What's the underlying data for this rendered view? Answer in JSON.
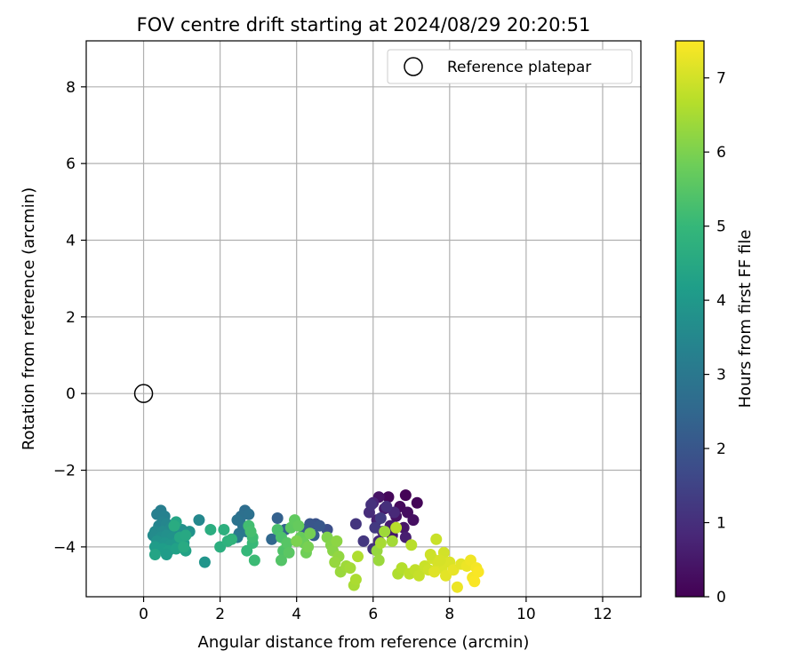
{
  "chart_data": {
    "type": "scatter",
    "title": "FOV centre drift starting at 2024/08/29 20:20:51",
    "xlabel": "Angular distance from reference (arcmin)",
    "ylabel": "Rotation from reference (arcmin)",
    "xlim": [
      -1.5,
      13.0
    ],
    "ylim": [
      -5.3,
      9.2
    ],
    "xticks": [
      0,
      2,
      4,
      6,
      8,
      10,
      12
    ],
    "yticks": [
      -4,
      -2,
      0,
      2,
      4,
      6,
      8
    ],
    "xtick_labels": [
      "0",
      "2",
      "4",
      "6",
      "8",
      "10",
      "12"
    ],
    "ytick_labels": [
      "−4",
      "−2",
      "0",
      "2",
      "4",
      "6",
      "8"
    ],
    "grid": true,
    "legend": {
      "placement": "top-right",
      "entries": [
        "Reference platepar"
      ]
    },
    "reference_point": {
      "name": "Reference platepar",
      "x": 0,
      "y": 0,
      "marker": "open-circle",
      "color": "#000000"
    },
    "colorbar": {
      "label": "Hours from first FF file",
      "min": 0,
      "max": 7.5,
      "ticks": [
        0,
        1,
        2,
        3,
        4,
        5,
        6,
        7
      ],
      "tick_labels": [
        "0",
        "1",
        "2",
        "3",
        "4",
        "5",
        "6",
        "7"
      ],
      "colormap": "viridis",
      "colormap_stops": [
        "#440154",
        "#482878",
        "#3e4a89",
        "#31688e",
        "#26828e",
        "#1f9e89",
        "#35b779",
        "#6ece58",
        "#b5de2b",
        "#fde725"
      ]
    },
    "series": [
      {
        "points": [
          {
            "x": 6.85,
            "y": -2.65,
            "t": 0.05
          },
          {
            "x": 7.15,
            "y": -2.85,
            "t": 0.1
          },
          {
            "x": 6.4,
            "y": -2.7,
            "t": 0.15
          },
          {
            "x": 6.7,
            "y": -2.95,
            "t": 0.2
          },
          {
            "x": 6.9,
            "y": -3.1,
            "t": 0.25
          },
          {
            "x": 7.05,
            "y": -3.3,
            "t": 0.3
          },
          {
            "x": 6.6,
            "y": -3.2,
            "t": 0.35
          },
          {
            "x": 6.15,
            "y": -2.7,
            "t": 0.4
          },
          {
            "x": 6.8,
            "y": -3.5,
            "t": 0.45
          },
          {
            "x": 6.5,
            "y": -3.7,
            "t": 0.5
          },
          {
            "x": 6.3,
            "y": -3.0,
            "t": 0.55
          },
          {
            "x": 6.45,
            "y": -3.45,
            "t": 0.6
          },
          {
            "x": 6.85,
            "y": -3.75,
            "t": 0.65
          },
          {
            "x": 6.1,
            "y": -3.3,
            "t": 0.7
          },
          {
            "x": 6.25,
            "y": -3.6,
            "t": 0.75
          },
          {
            "x": 6.0,
            "y": -2.85,
            "t": 0.8
          },
          {
            "x": 6.55,
            "y": -3.1,
            "t": 0.85
          },
          {
            "x": 6.15,
            "y": -3.85,
            "t": 0.9
          },
          {
            "x": 5.9,
            "y": -3.1,
            "t": 0.95
          },
          {
            "x": 6.35,
            "y": -2.95,
            "t": 1.0
          },
          {
            "x": 5.95,
            "y": -2.9,
            "t": 1.05
          },
          {
            "x": 6.0,
            "y": -4.05,
            "t": 1.1
          },
          {
            "x": 5.55,
            "y": -3.4,
            "t": 1.15
          },
          {
            "x": 5.75,
            "y": -3.85,
            "t": 1.2
          },
          {
            "x": 6.05,
            "y": -3.5,
            "t": 1.25
          },
          {
            "x": 6.2,
            "y": -3.25,
            "t": 1.3
          },
          {
            "x": 4.8,
            "y": -3.55,
            "t": 1.8
          },
          {
            "x": 4.5,
            "y": -3.4,
            "t": 1.9
          },
          {
            "x": 4.35,
            "y": -3.4,
            "t": 2.0
          },
          {
            "x": 4.6,
            "y": -3.45,
            "t": 2.05
          },
          {
            "x": 4.2,
            "y": -3.55,
            "t": 2.1
          },
          {
            "x": 4.45,
            "y": -3.7,
            "t": 2.2
          },
          {
            "x": 3.5,
            "y": -3.25,
            "t": 2.3
          },
          {
            "x": 3.7,
            "y": -3.55,
            "t": 2.4
          },
          {
            "x": 3.35,
            "y": -3.8,
            "t": 2.5
          },
          {
            "x": 2.65,
            "y": -3.05,
            "t": 2.7
          },
          {
            "x": 2.55,
            "y": -3.2,
            "t": 2.75
          },
          {
            "x": 2.75,
            "y": -3.15,
            "t": 2.8
          },
          {
            "x": 2.45,
            "y": -3.3,
            "t": 2.85
          },
          {
            "x": 2.6,
            "y": -3.45,
            "t": 2.9
          },
          {
            "x": 2.5,
            "y": -3.65,
            "t": 2.95
          },
          {
            "x": 2.7,
            "y": -3.6,
            "t": 3.0
          },
          {
            "x": 2.45,
            "y": -3.75,
            "t": 3.05
          },
          {
            "x": 0.45,
            "y": -3.05,
            "t": 3.2
          },
          {
            "x": 0.35,
            "y": -3.15,
            "t": 3.25
          },
          {
            "x": 0.55,
            "y": -3.2,
            "t": 3.3
          },
          {
            "x": 0.5,
            "y": -3.35,
            "t": 3.35
          },
          {
            "x": 0.4,
            "y": -3.45,
            "t": 3.4
          },
          {
            "x": 0.6,
            "y": -3.4,
            "t": 3.45
          },
          {
            "x": 0.7,
            "y": -3.5,
            "t": 3.5
          },
          {
            "x": 0.3,
            "y": -3.6,
            "t": 3.55
          },
          {
            "x": 0.5,
            "y": -3.6,
            "t": 3.6
          },
          {
            "x": 0.8,
            "y": -3.55,
            "t": 3.65
          },
          {
            "x": 0.9,
            "y": -3.6,
            "t": 3.7
          },
          {
            "x": 1.0,
            "y": -3.55,
            "t": 3.75
          },
          {
            "x": 1.2,
            "y": -3.6,
            "t": 3.8
          },
          {
            "x": 1.45,
            "y": -3.3,
            "t": 3.5
          },
          {
            "x": 0.25,
            "y": -3.7,
            "t": 3.6
          },
          {
            "x": 0.45,
            "y": -3.75,
            "t": 3.7
          },
          {
            "x": 0.6,
            "y": -3.7,
            "t": 3.75
          },
          {
            "x": 0.75,
            "y": -3.75,
            "t": 3.8
          },
          {
            "x": 0.35,
            "y": -3.85,
            "t": 3.85
          },
          {
            "x": 0.55,
            "y": -3.9,
            "t": 3.9
          },
          {
            "x": 0.7,
            "y": -3.95,
            "t": 3.95
          },
          {
            "x": 0.9,
            "y": -3.85,
            "t": 4.0
          },
          {
            "x": 1.05,
            "y": -3.9,
            "t": 4.05
          },
          {
            "x": 0.3,
            "y": -4.0,
            "t": 4.1
          },
          {
            "x": 0.5,
            "y": -4.05,
            "t": 4.15
          },
          {
            "x": 0.65,
            "y": -4.1,
            "t": 4.2
          },
          {
            "x": 0.85,
            "y": -4.05,
            "t": 4.25
          },
          {
            "x": 1.1,
            "y": -4.1,
            "t": 4.3
          },
          {
            "x": 0.3,
            "y": -4.2,
            "t": 4.35
          },
          {
            "x": 0.6,
            "y": -4.2,
            "t": 4.1
          },
          {
            "x": 1.6,
            "y": -4.4,
            "t": 3.9
          },
          {
            "x": 0.85,
            "y": -3.35,
            "t": 4.4
          },
          {
            "x": 0.95,
            "y": -3.75,
            "t": 4.45
          },
          {
            "x": 1.1,
            "y": -3.7,
            "t": 4.5
          },
          {
            "x": 1.05,
            "y": -4.0,
            "t": 4.55
          },
          {
            "x": 0.8,
            "y": -3.45,
            "t": 4.6
          },
          {
            "x": 1.75,
            "y": -3.55,
            "t": 4.65
          },
          {
            "x": 2.0,
            "y": -4.0,
            "t": 4.7
          },
          {
            "x": 2.1,
            "y": -3.55,
            "t": 4.75
          },
          {
            "x": 2.2,
            "y": -3.85,
            "t": 4.8
          },
          {
            "x": 2.3,
            "y": -3.8,
            "t": 4.85
          },
          {
            "x": 2.7,
            "y": -4.1,
            "t": 5.0
          },
          {
            "x": 2.85,
            "y": -3.9,
            "t": 5.05
          },
          {
            "x": 2.9,
            "y": -4.35,
            "t": 5.1
          },
          {
            "x": 2.85,
            "y": -3.75,
            "t": 5.15
          },
          {
            "x": 2.75,
            "y": -3.45,
            "t": 5.2
          },
          {
            "x": 2.8,
            "y": -3.6,
            "t": 5.25
          },
          {
            "x": 3.5,
            "y": -3.55,
            "t": 5.3
          },
          {
            "x": 3.6,
            "y": -3.75,
            "t": 5.35
          },
          {
            "x": 3.65,
            "y": -4.1,
            "t": 5.4
          },
          {
            "x": 3.6,
            "y": -4.35,
            "t": 5.45
          },
          {
            "x": 3.75,
            "y": -3.9,
            "t": 5.5
          },
          {
            "x": 3.8,
            "y": -4.15,
            "t": 5.55
          },
          {
            "x": 3.85,
            "y": -3.5,
            "t": 5.6
          },
          {
            "x": 3.95,
            "y": -3.3,
            "t": 5.65
          },
          {
            "x": 4.05,
            "y": -3.45,
            "t": 5.7
          },
          {
            "x": 4.1,
            "y": -3.75,
            "t": 5.75
          },
          {
            "x": 4.2,
            "y": -3.9,
            "t": 5.8
          },
          {
            "x": 4.25,
            "y": -4.15,
            "t": 5.85
          },
          {
            "x": 4.35,
            "y": -3.65,
            "t": 5.9
          },
          {
            "x": 4.3,
            "y": -4.0,
            "t": 5.95
          },
          {
            "x": 4.0,
            "y": -3.85,
            "t": 6.0
          },
          {
            "x": 4.8,
            "y": -3.75,
            "t": 6.05
          },
          {
            "x": 4.9,
            "y": -3.95,
            "t": 6.1
          },
          {
            "x": 4.95,
            "y": -4.1,
            "t": 6.15
          },
          {
            "x": 5.05,
            "y": -3.85,
            "t": 6.2
          },
          {
            "x": 5.1,
            "y": -4.25,
            "t": 6.25
          },
          {
            "x": 5.0,
            "y": -4.4,
            "t": 6.3
          },
          {
            "x": 5.15,
            "y": -4.65,
            "t": 6.35
          },
          {
            "x": 5.3,
            "y": -4.5,
            "t": 6.4
          },
          {
            "x": 5.4,
            "y": -4.55,
            "t": 6.45
          },
          {
            "x": 5.5,
            "y": -5.0,
            "t": 6.5
          },
          {
            "x": 5.55,
            "y": -4.85,
            "t": 6.55
          },
          {
            "x": 5.6,
            "y": -4.25,
            "t": 6.6
          },
          {
            "x": 6.1,
            "y": -4.1,
            "t": 6.3
          },
          {
            "x": 6.15,
            "y": -4.35,
            "t": 6.35
          },
          {
            "x": 6.3,
            "y": -3.6,
            "t": 6.4
          },
          {
            "x": 6.6,
            "y": -3.5,
            "t": 6.7
          },
          {
            "x": 6.5,
            "y": -3.85,
            "t": 6.45
          },
          {
            "x": 6.2,
            "y": -3.9,
            "t": 6.5
          },
          {
            "x": 6.65,
            "y": -4.7,
            "t": 6.6
          },
          {
            "x": 6.75,
            "y": -4.55,
            "t": 6.65
          },
          {
            "x": 7.0,
            "y": -3.95,
            "t": 6.7
          },
          {
            "x": 6.95,
            "y": -4.7,
            "t": 6.75
          },
          {
            "x": 7.1,
            "y": -4.6,
            "t": 6.8
          },
          {
            "x": 7.2,
            "y": -4.75,
            "t": 6.85
          },
          {
            "x": 7.35,
            "y": -4.5,
            "t": 6.9
          },
          {
            "x": 7.45,
            "y": -4.6,
            "t": 6.95
          },
          {
            "x": 7.55,
            "y": -4.3,
            "t": 7.0
          },
          {
            "x": 7.65,
            "y": -3.8,
            "t": 6.9
          },
          {
            "x": 7.7,
            "y": -4.45,
            "t": 7.05
          },
          {
            "x": 7.8,
            "y": -4.55,
            "t": 7.1
          },
          {
            "x": 7.85,
            "y": -4.15,
            "t": 7.0
          },
          {
            "x": 7.6,
            "y": -4.65,
            "t": 7.15
          },
          {
            "x": 7.9,
            "y": -4.75,
            "t": 7.2
          },
          {
            "x": 8.0,
            "y": -4.4,
            "t": 7.1
          },
          {
            "x": 8.1,
            "y": -4.6,
            "t": 7.25
          },
          {
            "x": 8.2,
            "y": -5.05,
            "t": 7.3
          },
          {
            "x": 8.3,
            "y": -4.45,
            "t": 7.2
          },
          {
            "x": 8.45,
            "y": -4.5,
            "t": 7.3
          },
          {
            "x": 8.55,
            "y": -4.35,
            "t": 7.35
          },
          {
            "x": 8.6,
            "y": -4.8,
            "t": 7.4
          },
          {
            "x": 8.7,
            "y": -4.55,
            "t": 7.4
          },
          {
            "x": 8.75,
            "y": -4.65,
            "t": 7.45
          },
          {
            "x": 8.65,
            "y": -4.9,
            "t": 7.45
          },
          {
            "x": 7.5,
            "y": -4.2,
            "t": 6.95
          },
          {
            "x": 7.75,
            "y": -4.35,
            "t": 7.05
          }
        ]
      }
    ]
  }
}
